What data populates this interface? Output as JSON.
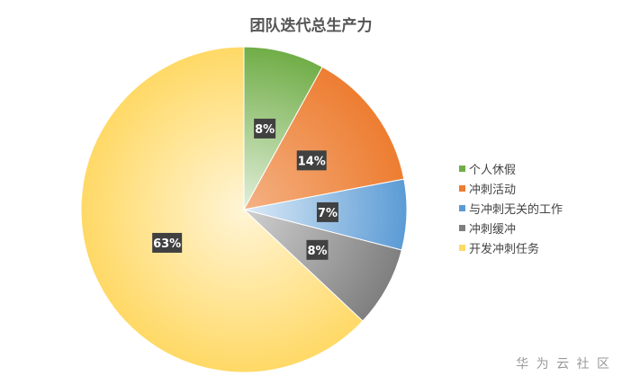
{
  "chart_data": {
    "type": "pie",
    "title": "团队迭代总生产力",
    "categories": [
      "个人休假",
      "冲刺活动",
      "与冲刺无关的工作",
      "冲刺缓冲",
      "开发冲刺任务"
    ],
    "values": [
      8,
      14,
      7,
      8,
      63
    ],
    "labels": [
      "8%",
      "14%",
      "7%",
      "8%",
      "63%"
    ],
    "colors": [
      "#70ad47",
      "#ed7d31",
      "#5b9bd5",
      "#7f7f7f",
      "#ffd966"
    ],
    "inner_colors": [
      "#e2efda",
      "#f4b183",
      "#ddebf7",
      "#d0d0d0",
      "#fff5d6"
    ],
    "legend_position": "right"
  },
  "watermark": "华 为 云 社 区"
}
